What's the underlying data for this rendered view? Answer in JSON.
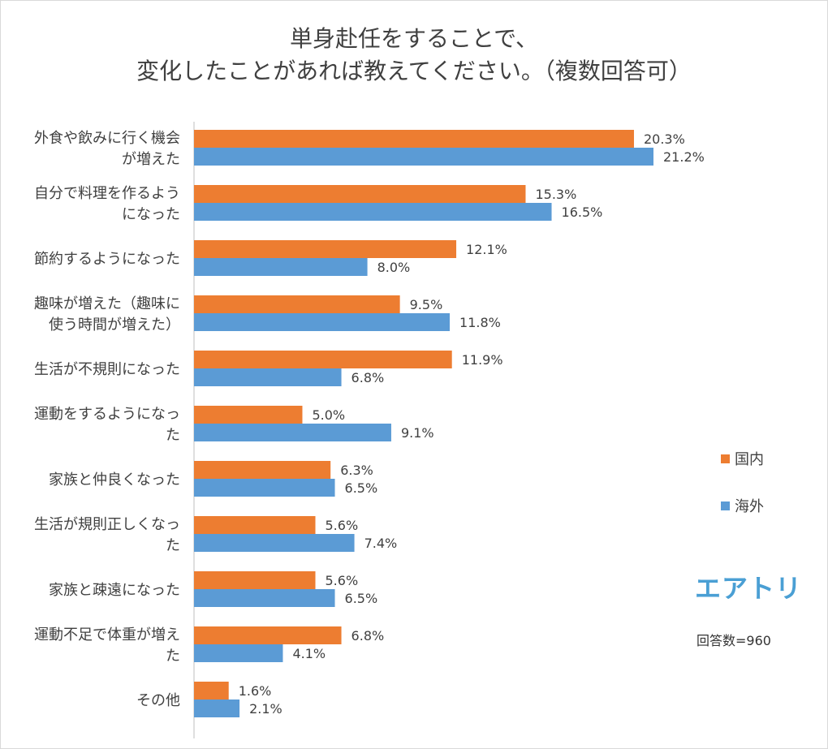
{
  "chart_data": {
    "type": "bar",
    "orientation": "horizontal",
    "title": [
      "単身赴任をすることで、",
      "変化したことがあれば教えてください。（複数回答可）"
    ],
    "categories": [
      [
        "外食や飲みに行く機会",
        "が増えた"
      ],
      [
        "自分で料理を作るよう",
        "になった"
      ],
      [
        "節約するようになった"
      ],
      [
        "趣味が増えた（趣味に",
        "使う時間が増えた）"
      ],
      [
        "生活が不規則になった"
      ],
      [
        "運動をするようになっ",
        "た"
      ],
      [
        "家族と仲良くなった"
      ],
      [
        "生活が規則正しくなっ",
        "た"
      ],
      [
        "家族と疎遠になった"
      ],
      [
        "運動不足で体重が増え",
        "た"
      ],
      [
        "その他"
      ]
    ],
    "series": [
      {
        "name": "国内",
        "color": "#ed7d31",
        "values": [
          20.3,
          15.3,
          12.1,
          9.5,
          11.9,
          5.0,
          6.3,
          5.6,
          5.6,
          6.8,
          1.6
        ],
        "labels": [
          "20.3%",
          "15.3%",
          "12.1%",
          "9.5%",
          "11.9%",
          "5.0%",
          "6.3%",
          "5.6%",
          "5.6%",
          "6.8%",
          "1.6%"
        ]
      },
      {
        "name": "海外",
        "color": "#5b9bd5",
        "values": [
          21.2,
          16.5,
          8.0,
          11.8,
          6.8,
          9.1,
          6.5,
          7.4,
          6.5,
          4.1,
          2.1
        ],
        "labels": [
          "21.2%",
          "16.5%",
          "8.0%",
          "11.8%",
          "6.8%",
          "9.1%",
          "6.5%",
          "7.4%",
          "6.5%",
          "4.1%",
          "2.1%"
        ]
      }
    ],
    "xlim": [
      0,
      25
    ],
    "unit": "%",
    "grid": false,
    "legend_position": "right"
  },
  "legend": {
    "items": [
      {
        "label": "国内",
        "color": "#ed7d31"
      },
      {
        "label": "海外",
        "color": "#5b9bd5"
      }
    ]
  },
  "logo": {
    "text": "エアトリ",
    "color": "#4a9fd4"
  },
  "footer": {
    "respondents": "回答数=960"
  }
}
